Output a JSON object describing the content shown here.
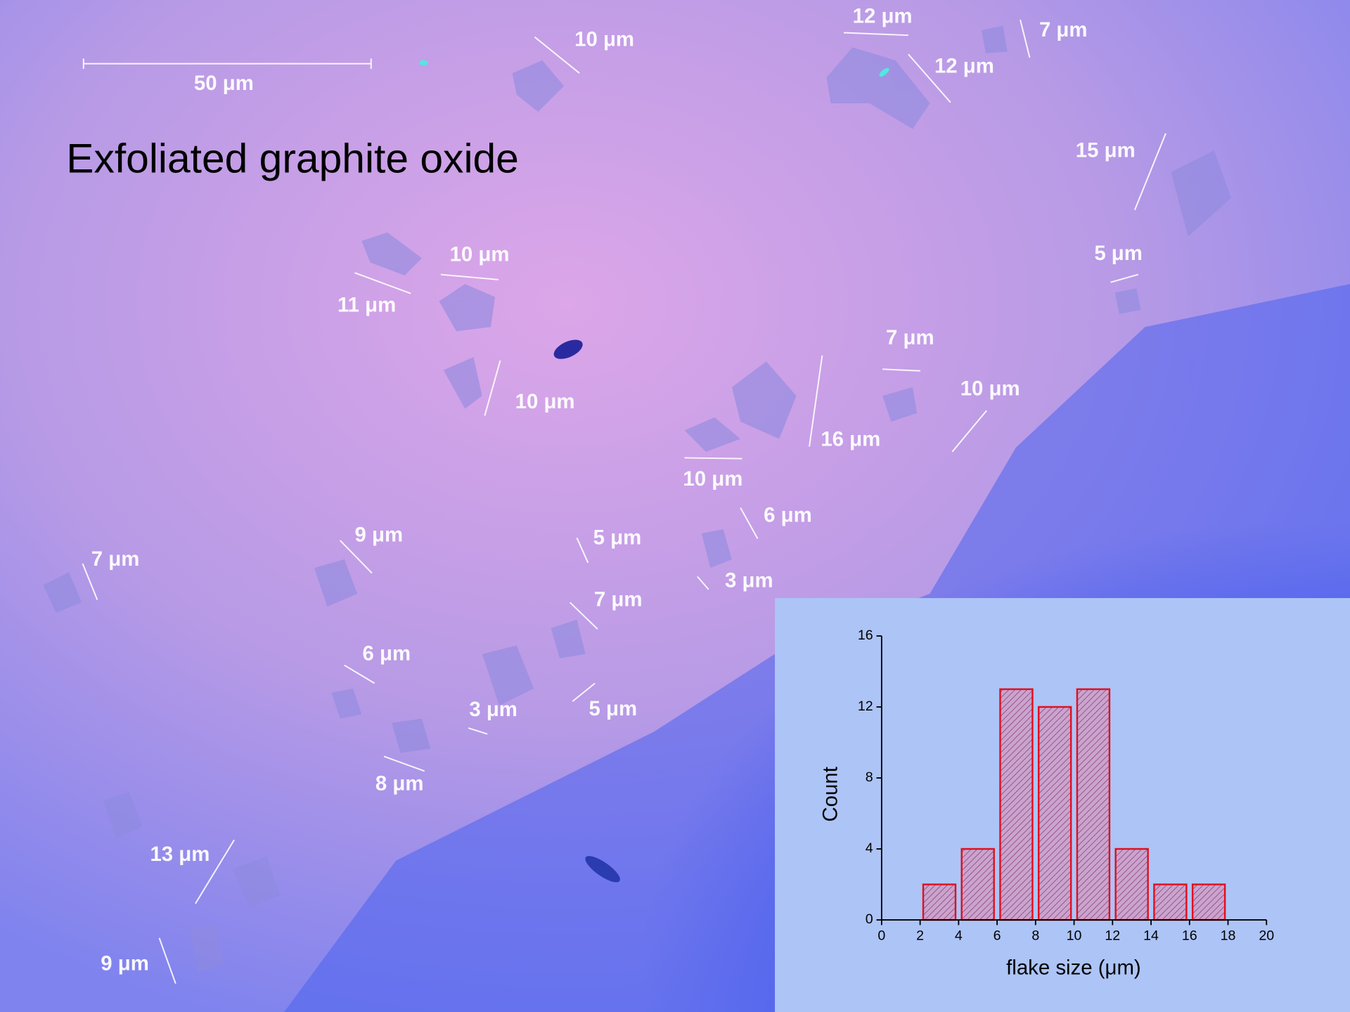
{
  "image": {
    "title": "Exfoliated graphite oxide",
    "scale_bar": "50 μm",
    "annotations": [
      "10 μm",
      "12 μm",
      "7 μm",
      "12 μm",
      "15 μm",
      "5 μm",
      "10 μm",
      "11 μm",
      "7 μm",
      "10 μm",
      "10 μm",
      "16 μm",
      "10 μm",
      "6 μm",
      "9 μm",
      "5 μm",
      "7 μm",
      "3 μm",
      "7 μm",
      "6 μm",
      "3 μm",
      "5 μm",
      "8 μm",
      "13 μm",
      "9 μm"
    ]
  },
  "chart_data": {
    "type": "histogram",
    "bins": [
      2,
      4,
      6,
      8,
      10,
      12,
      14,
      16,
      18
    ],
    "values": [
      2,
      4,
      13,
      12,
      13,
      4,
      2,
      2
    ],
    "color": "#e01020",
    "x_label": "flake size (μm)",
    "y_label": "Count",
    "xlim": [
      0,
      20
    ],
    "xticks": [
      0,
      2,
      4,
      6,
      8,
      10,
      12,
      14,
      16,
      18,
      20
    ],
    "ylim": [
      0,
      16
    ],
    "yticks": [
      0,
      4,
      8,
      12,
      16
    ]
  }
}
